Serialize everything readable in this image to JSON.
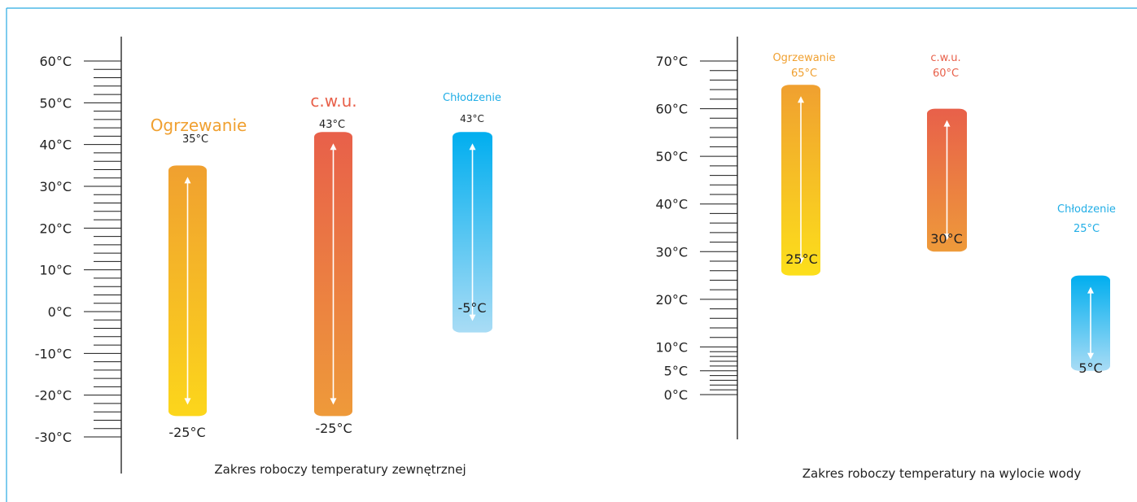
{
  "colors": {
    "frame": "#29abe2",
    "axis": "#1a1a1a",
    "text": "#222222",
    "heating": "#f0a030",
    "dhw": "#e8604a",
    "cooling": "#22aee6",
    "arrow": "#ffffff"
  },
  "chart_data": [
    {
      "type": "range-bar",
      "xlabel": "Zakres roboczy temperatury zewnętrznej",
      "y_ticks": [
        {
          "value": -30,
          "label": "-30°C"
        },
        {
          "value": -20,
          "label": "-20°C"
        },
        {
          "value": -10,
          "label": "-10°C"
        },
        {
          "value": 0,
          "label": "0°C"
        },
        {
          "value": 10,
          "label": "10°C"
        },
        {
          "value": 20,
          "label": "20°C"
        },
        {
          "value": 30,
          "label": "30°C"
        },
        {
          "value": 40,
          "label": "40°C"
        },
        {
          "value": 50,
          "label": "50°C"
        },
        {
          "value": 60,
          "label": "60°C"
        }
      ],
      "ylim": [
        -30,
        60
      ],
      "series": [
        {
          "name": "Ogrzewanie",
          "min": -25,
          "max": 35,
          "min_label": "-25°C",
          "max_label": "35°C",
          "gradient": [
            "#fcd61b",
            "#f0a030"
          ]
        },
        {
          "name": "c.w.u.",
          "min": -25,
          "max": 43,
          "min_label": "-25°C",
          "max_label": "43°C",
          "gradient": [
            "#ee9a3a",
            "#e8604a"
          ]
        },
        {
          "name": "Chłodzenie",
          "min": -5,
          "max": 43,
          "min_label": "-5°C",
          "max_label": "43°C",
          "gradient": [
            "#a9dcf5",
            "#00aeef"
          ]
        }
      ]
    },
    {
      "type": "range-bar",
      "xlabel": "Zakres roboczy temperatury na wylocie wody",
      "y_ticks": [
        {
          "value": 0,
          "label": "0°C"
        },
        {
          "value": 5,
          "label": "5°C"
        },
        {
          "value": 10,
          "label": "10°C"
        },
        {
          "value": 20,
          "label": "20°C"
        },
        {
          "value": 30,
          "label": "30°C"
        },
        {
          "value": 40,
          "label": "40°C"
        },
        {
          "value": 50,
          "label": "50°C"
        },
        {
          "value": 60,
          "label": "60°C"
        },
        {
          "value": 70,
          "label": "70°C"
        }
      ],
      "series": [
        {
          "name": "Ogrzewanie",
          "min": 25,
          "max": 65,
          "min_label": "25°C",
          "max_label": "65°C",
          "gradient": [
            "#fcdf1b",
            "#f0a030"
          ]
        },
        {
          "name": "c.w.u.",
          "min": 30,
          "max": 60,
          "min_label": "30°C",
          "max_label": "60°C",
          "gradient": [
            "#ee9a3a",
            "#e8604a"
          ]
        },
        {
          "name": "Chłodzenie",
          "min": 5,
          "max": 25,
          "min_label": "5°C",
          "max_label": "25°C",
          "gradient": [
            "#a9dcf5",
            "#00aeef"
          ]
        }
      ]
    }
  ]
}
